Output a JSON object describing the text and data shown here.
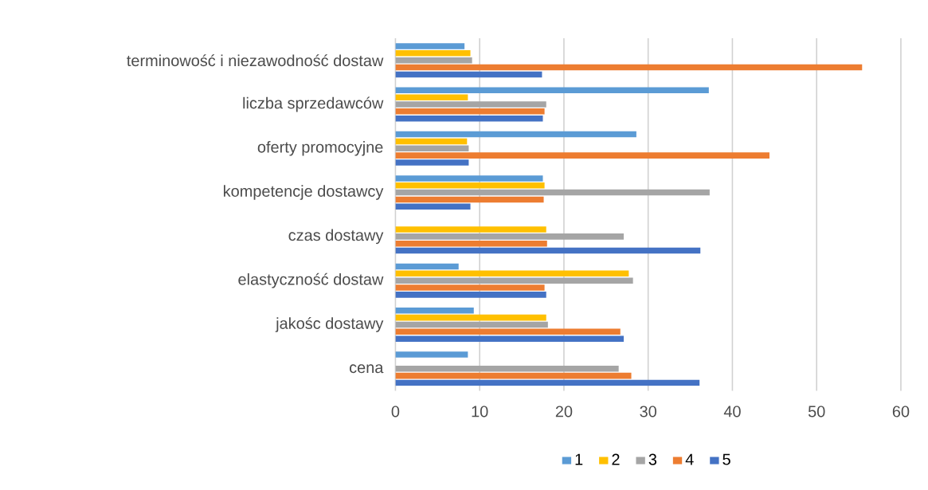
{
  "chart_data": {
    "type": "bar",
    "orientation": "horizontal",
    "categories": [
      "terminowość i niezawodność dostaw",
      "liczba sprzedawców",
      "oferty promocyjne",
      "kompetencje dostawcy",
      "czas dostawy",
      "elastyczność dostaw",
      "jakośc dostawy",
      "cena"
    ],
    "series": [
      {
        "name": "1",
        "color": "#5b9bd5",
        "values": [
          8.2,
          37.2,
          28.6,
          17.5,
          null,
          7.5,
          9.3,
          8.6
        ]
      },
      {
        "name": "2",
        "color": "#ffc000",
        "values": [
          8.9,
          8.6,
          8.5,
          17.7,
          17.9,
          27.7,
          17.9,
          null
        ]
      },
      {
        "name": "3",
        "color": "#a5a5a5",
        "values": [
          9.1,
          17.9,
          8.7,
          37.3,
          27.1,
          28.2,
          18.1,
          26.5
        ]
      },
      {
        "name": "4",
        "color": "#ed7d31",
        "values": [
          55.4,
          17.7,
          44.4,
          17.6,
          18.0,
          17.7,
          26.7,
          28.0
        ]
      },
      {
        "name": "5",
        "color": "#4472c4",
        "values": [
          17.4,
          17.5,
          8.7,
          8.9,
          36.2,
          17.9,
          27.1,
          36.1
        ]
      }
    ],
    "xlim": [
      0,
      60
    ],
    "xticks": [
      0,
      10,
      20,
      30,
      40,
      50,
      60
    ],
    "grid": "x",
    "legend": "bottom"
  }
}
